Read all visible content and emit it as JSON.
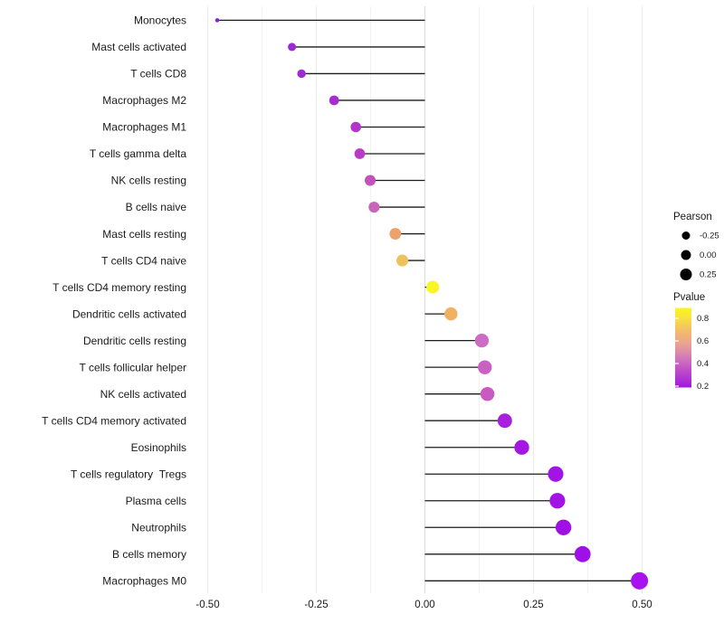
{
  "chart_data": {
    "type": "lollipop",
    "title": "",
    "xlabel": "",
    "ylabel": "",
    "x_ticks": [
      "-0.50",
      "-0.25",
      "0.00",
      "0.25",
      "0.50"
    ],
    "x_tick_values": [
      -0.5,
      -0.25,
      0,
      0.25,
      0.5
    ],
    "x_minor_values": [
      -0.375,
      -0.125,
      0.125,
      0.375
    ],
    "xlim": [
      -0.53,
      0.54
    ],
    "grid": "vertical major and minor gridlines, light gray, no axis lines",
    "baseline_x": 0,
    "segment_color": "#1c1c1c",
    "rows": [
      {
        "label": "Monocytes",
        "pearson": -0.478,
        "pvalue_approx": 0.08,
        "color": "#8B1FD6"
      },
      {
        "label": "Mast cells activated",
        "pearson": -0.306,
        "pvalue_approx": 0.1,
        "color": "#9A2AD2"
      },
      {
        "label": "T cells CD8",
        "pearson": -0.284,
        "pvalue_approx": 0.11,
        "color": "#9C2BD4"
      },
      {
        "label": "Macrophages M2",
        "pearson": -0.209,
        "pvalue_approx": 0.14,
        "color": "#A72CD0"
      },
      {
        "label": "Macrophages M1",
        "pearson": -0.159,
        "pvalue_approx": 0.19,
        "color": "#B433C8"
      },
      {
        "label": "T cells gamma delta",
        "pearson": -0.15,
        "pvalue_approx": 0.21,
        "color": "#B93AC6"
      },
      {
        "label": "NK cells resting",
        "pearson": -0.126,
        "pvalue_approx": 0.28,
        "color": "#C251BE"
      },
      {
        "label": "B cells naive",
        "pearson": -0.117,
        "pvalue_approx": 0.33,
        "color": "#C864BA"
      },
      {
        "label": "Mast cells resting",
        "pearson": -0.068,
        "pvalue_approx": 0.62,
        "color": "#EDA26B"
      },
      {
        "label": "T cells CD4 naive",
        "pearson": -0.052,
        "pvalue_approx": 0.7,
        "color": "#EDC25C"
      },
      {
        "label": "T cells CD4 memory resting",
        "pearson": 0.018,
        "pvalue_approx": 0.87,
        "color": "#F8F523"
      },
      {
        "label": "Dendritic cells activated",
        "pearson": 0.06,
        "pvalue_approx": 0.63,
        "color": "#F0B160"
      },
      {
        "label": "Dendritic cells resting",
        "pearson": 0.131,
        "pvalue_approx": 0.38,
        "color": "#CC6CC4"
      },
      {
        "label": "T cells follicular helper",
        "pearson": 0.138,
        "pvalue_approx": 0.34,
        "color": "#C960C2"
      },
      {
        "label": "NK cells activated",
        "pearson": 0.144,
        "pvalue_approx": 0.32,
        "color": "#C85AC0"
      },
      {
        "label": "T cells CD4 memory activated",
        "pearson": 0.184,
        "pvalue_approx": 0.12,
        "color": "#A81FDE"
      },
      {
        "label": "Eosinophils",
        "pearson": 0.223,
        "pvalue_approx": 0.1,
        "color": "#A417E2"
      },
      {
        "label": "T cells regulatory  Tregs",
        "pearson": 0.301,
        "pvalue_approx": 0.09,
        "color": "#A214E6"
      },
      {
        "label": "Plasma cells",
        "pearson": 0.305,
        "pvalue_approx": 0.09,
        "color": "#A214E6"
      },
      {
        "label": "Neutrophils",
        "pearson": 0.319,
        "pvalue_approx": 0.07,
        "color": "#9E10E4"
      },
      {
        "label": "B cells memory",
        "pearson": 0.363,
        "pvalue_approx": 0.06,
        "color": "#9F10E8"
      },
      {
        "label": "Macrophages M0",
        "pearson": 0.494,
        "pvalue_approx": 0.02,
        "color": "#A812F0"
      }
    ],
    "legend_size": {
      "title": "Pearson",
      "entries": [
        {
          "label": "-0.25",
          "value": -0.25
        },
        {
          "label": "0.00",
          "value": 0.0
        },
        {
          "label": "0.25",
          "value": 0.25
        }
      ],
      "dot_color": "#000000"
    },
    "legend_color": {
      "title": "Pvalue",
      "ticks": [
        "0.8",
        "0.6",
        "0.4",
        "0.2"
      ],
      "gradient_stops": [
        {
          "offset": "0%",
          "color": "#9F15E6"
        },
        {
          "offset": "10%",
          "color": "#AE31D4"
        },
        {
          "offset": "22%",
          "color": "#BE4EC6"
        },
        {
          "offset": "32%",
          "color": "#CB6AC0"
        },
        {
          "offset": "44%",
          "color": "#DB8BAC"
        },
        {
          "offset": "56%",
          "color": "#EAA68C"
        },
        {
          "offset": "66%",
          "color": "#F1B376"
        },
        {
          "offset": "78%",
          "color": "#F5CB58"
        },
        {
          "offset": "89%",
          "color": "#F8E53A"
        },
        {
          "offset": "100%",
          "color": "#F9F620"
        }
      ]
    }
  }
}
